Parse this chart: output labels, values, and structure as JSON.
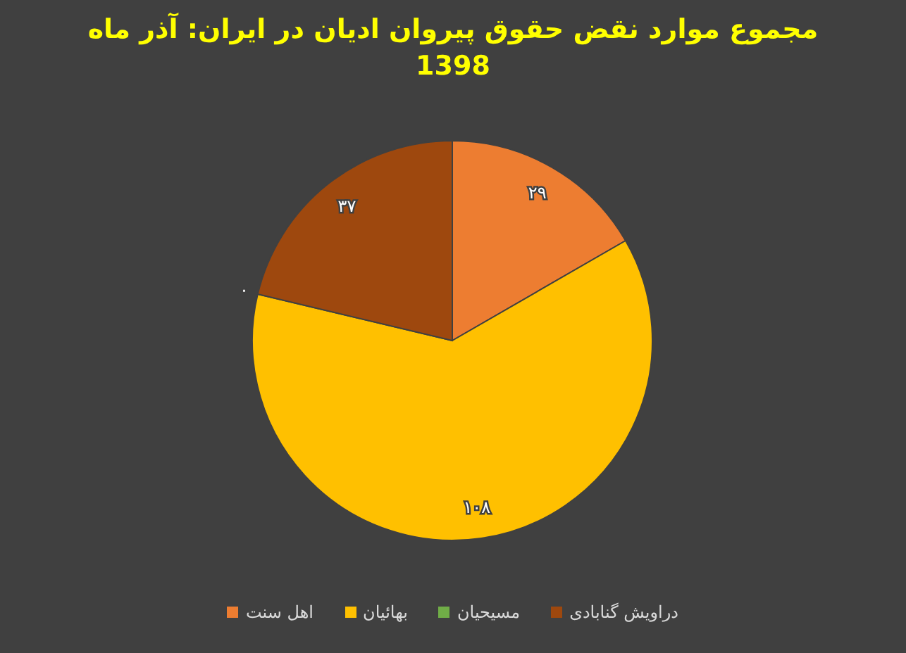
{
  "chart_data": {
    "type": "pie",
    "title": "مجموع موارد نقض حقوق پیروان ادیان در ایران: آذر ماه 1398",
    "categories": [
      "اهل سنت",
      "بهائیان",
      "مسیحیان",
      "دراویش گنابادی"
    ],
    "values": [
      29,
      108,
      0,
      37
    ],
    "value_labels": [
      "۲۹",
      "۱۰۸",
      "۰",
      "۳۷"
    ],
    "colors": [
      "#ed7d31",
      "#ffc000",
      "#70ad47",
      "#9e480e"
    ],
    "legend": "bottom"
  }
}
